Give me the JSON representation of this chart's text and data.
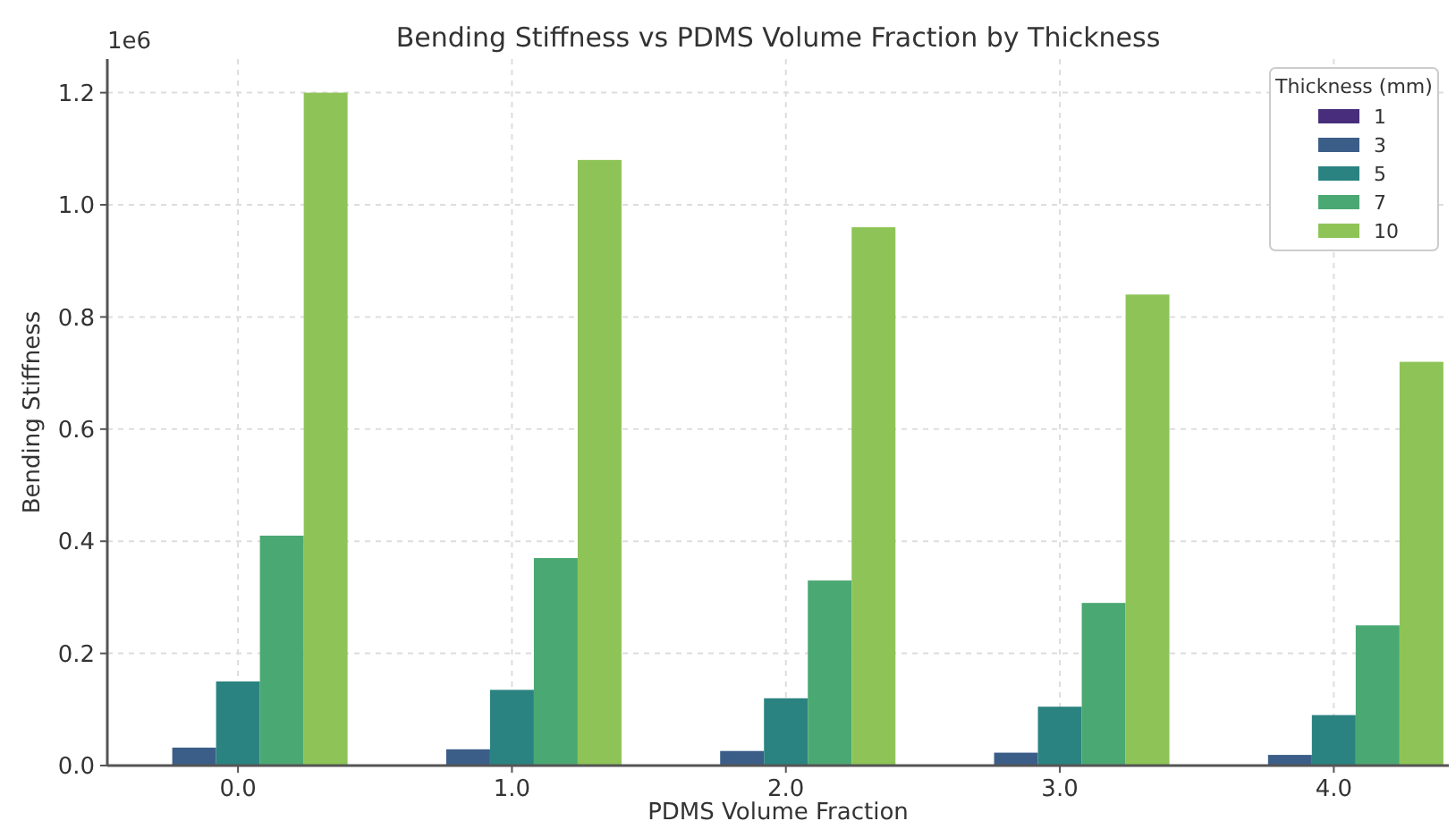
{
  "chart_data": {
    "type": "bar",
    "title": "Bending Stiffness vs PDMS Volume Fraction by Thickness",
    "xlabel": "PDMS Volume Fraction",
    "ylabel": "Bending Stiffness",
    "legend_title": "Thickness (mm)",
    "annotations": [
      "1e6"
    ],
    "categories": [
      "0.0",
      "1.0",
      "2.0",
      "3.0",
      "4.0"
    ],
    "series": [
      {
        "name": "1",
        "color": "#472d7b",
        "values": [
          0.001,
          0.001,
          0.001,
          0.001,
          0.001
        ]
      },
      {
        "name": "3",
        "color": "#3b5e88",
        "values": [
          0.032,
          0.029,
          0.026,
          0.023,
          0.019
        ]
      },
      {
        "name": "5",
        "color": "#2a8380",
        "values": [
          0.15,
          0.135,
          0.12,
          0.105,
          0.09
        ]
      },
      {
        "name": "7",
        "color": "#4aa872",
        "values": [
          0.41,
          0.37,
          0.33,
          0.29,
          0.25
        ]
      },
      {
        "name": "10",
        "color": "#8ec457",
        "values": [
          1.2,
          1.08,
          0.96,
          0.84,
          0.72
        ]
      }
    ],
    "ylim": [
      0,
      1.26
    ],
    "yticks": [
      {
        "value": 0,
        "label": "0.0"
      },
      0.2,
      0.4,
      0.6,
      0.8,
      {
        "value": 1,
        "label": "1.0"
      },
      1.2
    ],
    "grid": true,
    "legend": "top right"
  }
}
